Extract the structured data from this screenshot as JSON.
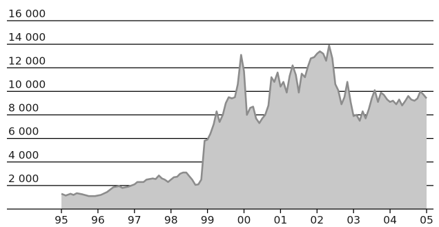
{
  "chart_data": {
    "type": "area",
    "title": "",
    "xlabel": "",
    "ylabel": "",
    "xlim": [
      1995,
      2005
    ],
    "ylim": [
      0,
      16000
    ],
    "grid": "horizontal",
    "legend": "none",
    "colors": {
      "fill": "#c8c8c8",
      "line": "#8c8c8c",
      "grid": "#000000",
      "axis": "#000000"
    },
    "y_ticks": [
      {
        "value": 2000,
        "label": "2 000"
      },
      {
        "value": 4000,
        "label": "4 000"
      },
      {
        "value": 6000,
        "label": "6 000"
      },
      {
        "value": 8000,
        "label": "8 000"
      },
      {
        "value": 10000,
        "label": "10 000"
      },
      {
        "value": 12000,
        "label": "12 000"
      },
      {
        "value": 14000,
        "label": "14 000"
      },
      {
        "value": 16000,
        "label": "16 000"
      }
    ],
    "x_ticks": [
      {
        "value": 1995,
        "label": "95"
      },
      {
        "value": 1996,
        "label": "96"
      },
      {
        "value": 1997,
        "label": "97"
      },
      {
        "value": 1998,
        "label": "98"
      },
      {
        "value": 1999,
        "label": "99"
      },
      {
        "value": 2000,
        "label": "00"
      },
      {
        "value": 2001,
        "label": "01"
      },
      {
        "value": 2002,
        "label": "02"
      },
      {
        "value": 2003,
        "label": "03"
      },
      {
        "value": 2004,
        "label": "04"
      },
      {
        "value": 2005,
        "label": "05"
      }
    ],
    "series": [
      {
        "points": [
          [
            1995.0,
            1300
          ],
          [
            1995.12,
            1150
          ],
          [
            1995.25,
            1300
          ],
          [
            1995.33,
            1200
          ],
          [
            1995.42,
            1350
          ],
          [
            1995.58,
            1250
          ],
          [
            1995.75,
            1100
          ],
          [
            1995.92,
            1100
          ],
          [
            1996.08,
            1200
          ],
          [
            1996.25,
            1450
          ],
          [
            1996.42,
            1850
          ],
          [
            1996.58,
            1950
          ],
          [
            1996.67,
            1800
          ],
          [
            1996.83,
            1900
          ],
          [
            1997.0,
            2100
          ],
          [
            1997.08,
            2300
          ],
          [
            1997.25,
            2300
          ],
          [
            1997.33,
            2500
          ],
          [
            1997.5,
            2600
          ],
          [
            1997.58,
            2550
          ],
          [
            1997.67,
            2850
          ],
          [
            1997.75,
            2600
          ],
          [
            1997.83,
            2500
          ],
          [
            1997.92,
            2300
          ],
          [
            1998.0,
            2500
          ],
          [
            1998.08,
            2700
          ],
          [
            1998.17,
            2750
          ],
          [
            1998.25,
            3000
          ],
          [
            1998.33,
            3100
          ],
          [
            1998.42,
            3100
          ],
          [
            1998.5,
            2800
          ],
          [
            1998.58,
            2500
          ],
          [
            1998.67,
            2050
          ],
          [
            1998.75,
            2100
          ],
          [
            1998.83,
            2500
          ],
          [
            1998.92,
            5800
          ],
          [
            1999.0,
            5900
          ],
          [
            1999.08,
            6400
          ],
          [
            1999.17,
            7200
          ],
          [
            1999.25,
            8300
          ],
          [
            1999.33,
            7400
          ],
          [
            1999.42,
            8000
          ],
          [
            1999.5,
            9000
          ],
          [
            1999.58,
            9500
          ],
          [
            1999.67,
            9400
          ],
          [
            1999.75,
            9500
          ],
          [
            1999.83,
            10600
          ],
          [
            1999.92,
            13100
          ],
          [
            2000.0,
            11700
          ],
          [
            2000.08,
            8000
          ],
          [
            2000.17,
            8600
          ],
          [
            2000.25,
            8700
          ],
          [
            2000.33,
            7700
          ],
          [
            2000.42,
            7300
          ],
          [
            2000.5,
            7700
          ],
          [
            2000.58,
            8000
          ],
          [
            2000.67,
            8800
          ],
          [
            2000.75,
            11200
          ],
          [
            2000.83,
            10800
          ],
          [
            2000.92,
            11600
          ],
          [
            2001.0,
            10400
          ],
          [
            2001.08,
            10800
          ],
          [
            2001.17,
            9900
          ],
          [
            2001.25,
            11300
          ],
          [
            2001.33,
            12200
          ],
          [
            2001.42,
            11400
          ],
          [
            2001.5,
            9900
          ],
          [
            2001.58,
            11500
          ],
          [
            2001.67,
            11200
          ],
          [
            2001.75,
            12100
          ],
          [
            2001.83,
            12800
          ],
          [
            2001.92,
            12900
          ],
          [
            2002.0,
            13200
          ],
          [
            2002.08,
            13400
          ],
          [
            2002.17,
            13200
          ],
          [
            2002.25,
            12600
          ],
          [
            2002.33,
            13900
          ],
          [
            2002.42,
            12800
          ],
          [
            2002.5,
            10600
          ],
          [
            2002.58,
            10100
          ],
          [
            2002.67,
            8900
          ],
          [
            2002.75,
            9500
          ],
          [
            2002.83,
            10800
          ],
          [
            2002.92,
            9100
          ],
          [
            2003.0,
            7900
          ],
          [
            2003.08,
            8000
          ],
          [
            2003.17,
            7500
          ],
          [
            2003.25,
            8300
          ],
          [
            2003.33,
            7700
          ],
          [
            2003.42,
            8500
          ],
          [
            2003.5,
            9400
          ],
          [
            2003.58,
            10100
          ],
          [
            2003.67,
            9100
          ],
          [
            2003.75,
            9900
          ],
          [
            2003.83,
            9700
          ],
          [
            2003.92,
            9300
          ],
          [
            2004.0,
            9100
          ],
          [
            2004.08,
            9200
          ],
          [
            2004.17,
            8900
          ],
          [
            2004.25,
            9300
          ],
          [
            2004.33,
            8800
          ],
          [
            2004.42,
            9200
          ],
          [
            2004.5,
            9600
          ],
          [
            2004.58,
            9300
          ],
          [
            2004.67,
            9200
          ],
          [
            2004.75,
            9400
          ],
          [
            2004.83,
            10000
          ],
          [
            2004.92,
            9700
          ],
          [
            2005.0,
            9400
          ]
        ]
      }
    ]
  }
}
